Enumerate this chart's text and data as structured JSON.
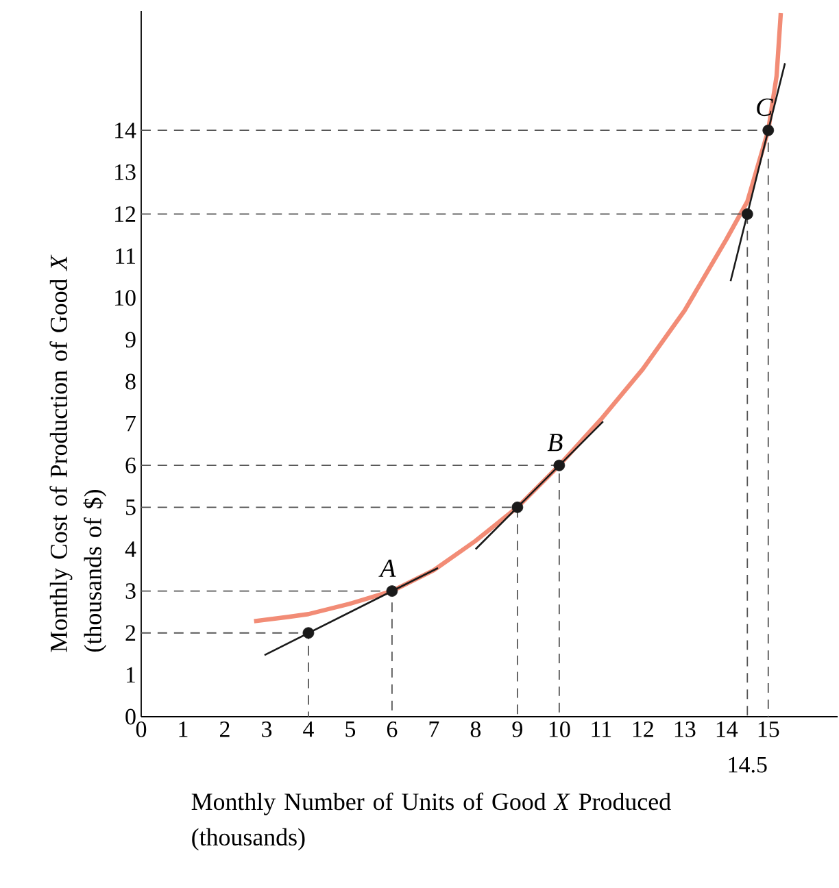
{
  "chart_data": {
    "type": "line",
    "marker": "none",
    "xlabel": "Monthly Number of Units of Good *X* Produced (thousands)",
    "ylabel": "Monthly Cost of Production of Good *X* (thousands of $)",
    "xlim": [
      0,
      16.66
    ],
    "ylim": [
      0,
      16.85
    ],
    "xticks": [
      0,
      1,
      2,
      3,
      4,
      5,
      6,
      7,
      8,
      9,
      10,
      11,
      12,
      13,
      14,
      15
    ],
    "yticks": [
      0,
      1,
      2,
      3,
      4,
      5,
      6,
      7,
      8,
      9,
      10,
      11,
      12,
      13,
      14
    ],
    "series": [
      {
        "color": "#f28c76",
        "x": [
          2.7,
          3.5,
          4,
          5,
          6,
          7,
          8,
          9,
          10,
          11,
          12,
          13,
          14,
          14.5,
          15,
          15.2,
          15.3
        ],
        "values": [
          2.28,
          2.38,
          2.45,
          2.7,
          3,
          3.5,
          4.2,
          5.0,
          6,
          7.1,
          8.3,
          9.7,
          11.4,
          12.3,
          14,
          15.3,
          16.8
        ]
      },
      {
        "type": "line",
        "color": "#1a1a1a",
        "x": [
          2.95,
          7.1
        ],
        "values": [
          1.47,
          3.55
        ]
      },
      {
        "type": "line",
        "color": "#1a1a1a",
        "x": [
          8.0,
          11.05
        ],
        "values": [
          4.0,
          7.05
        ]
      },
      {
        "type": "line",
        "color": "#1a1a1a",
        "x": [
          14.1,
          15.4
        ],
        "values": [
          10.4,
          15.6
        ]
      },
      {
        "type": "line",
        "line_style": "dashed",
        "color": "#555555",
        "x": [
          0,
          4,
          4
        ],
        "values": [
          2,
          2,
          0
        ]
      },
      {
        "type": "line",
        "line_style": "dashed",
        "color": "#555555",
        "x": [
          0,
          6,
          6
        ],
        "values": [
          3,
          3,
          0
        ]
      },
      {
        "type": "line",
        "line_style": "dashed",
        "color": "#555555",
        "x": [
          0,
          9,
          9
        ],
        "values": [
          5,
          5,
          0
        ]
      },
      {
        "type": "line",
        "line_style": "dashed",
        "color": "#555555",
        "x": [
          0,
          10,
          10
        ],
        "values": [
          6,
          6,
          0
        ]
      },
      {
        "type": "line",
        "line_style": "dashed",
        "color": "#555555",
        "x": [
          0,
          14.5,
          14.5
        ],
        "values": [
          12,
          12,
          0
        ]
      },
      {
        "type": "line",
        "line_style": "dashed",
        "color": "#555555",
        "x": [
          0,
          15,
          15
        ],
        "values": [
          14,
          14,
          0
        ]
      },
      {
        "type": "scatter",
        "marker": "circle",
        "color": "#1a1a1a",
        "x": [
          4,
          6,
          9,
          10,
          14.5,
          15
        ],
        "values": [
          2,
          3,
          5,
          6,
          12,
          14
        ]
      }
    ],
    "annotations": [
      {
        "text": "A",
        "x": 6,
        "y": 3
      },
      {
        "text": "B",
        "x": 10,
        "y": 6
      },
      {
        "text": "C",
        "x": 15,
        "y": 14
      },
      {
        "text": "14.5",
        "x": 14.5,
        "y": 0
      }
    ]
  }
}
